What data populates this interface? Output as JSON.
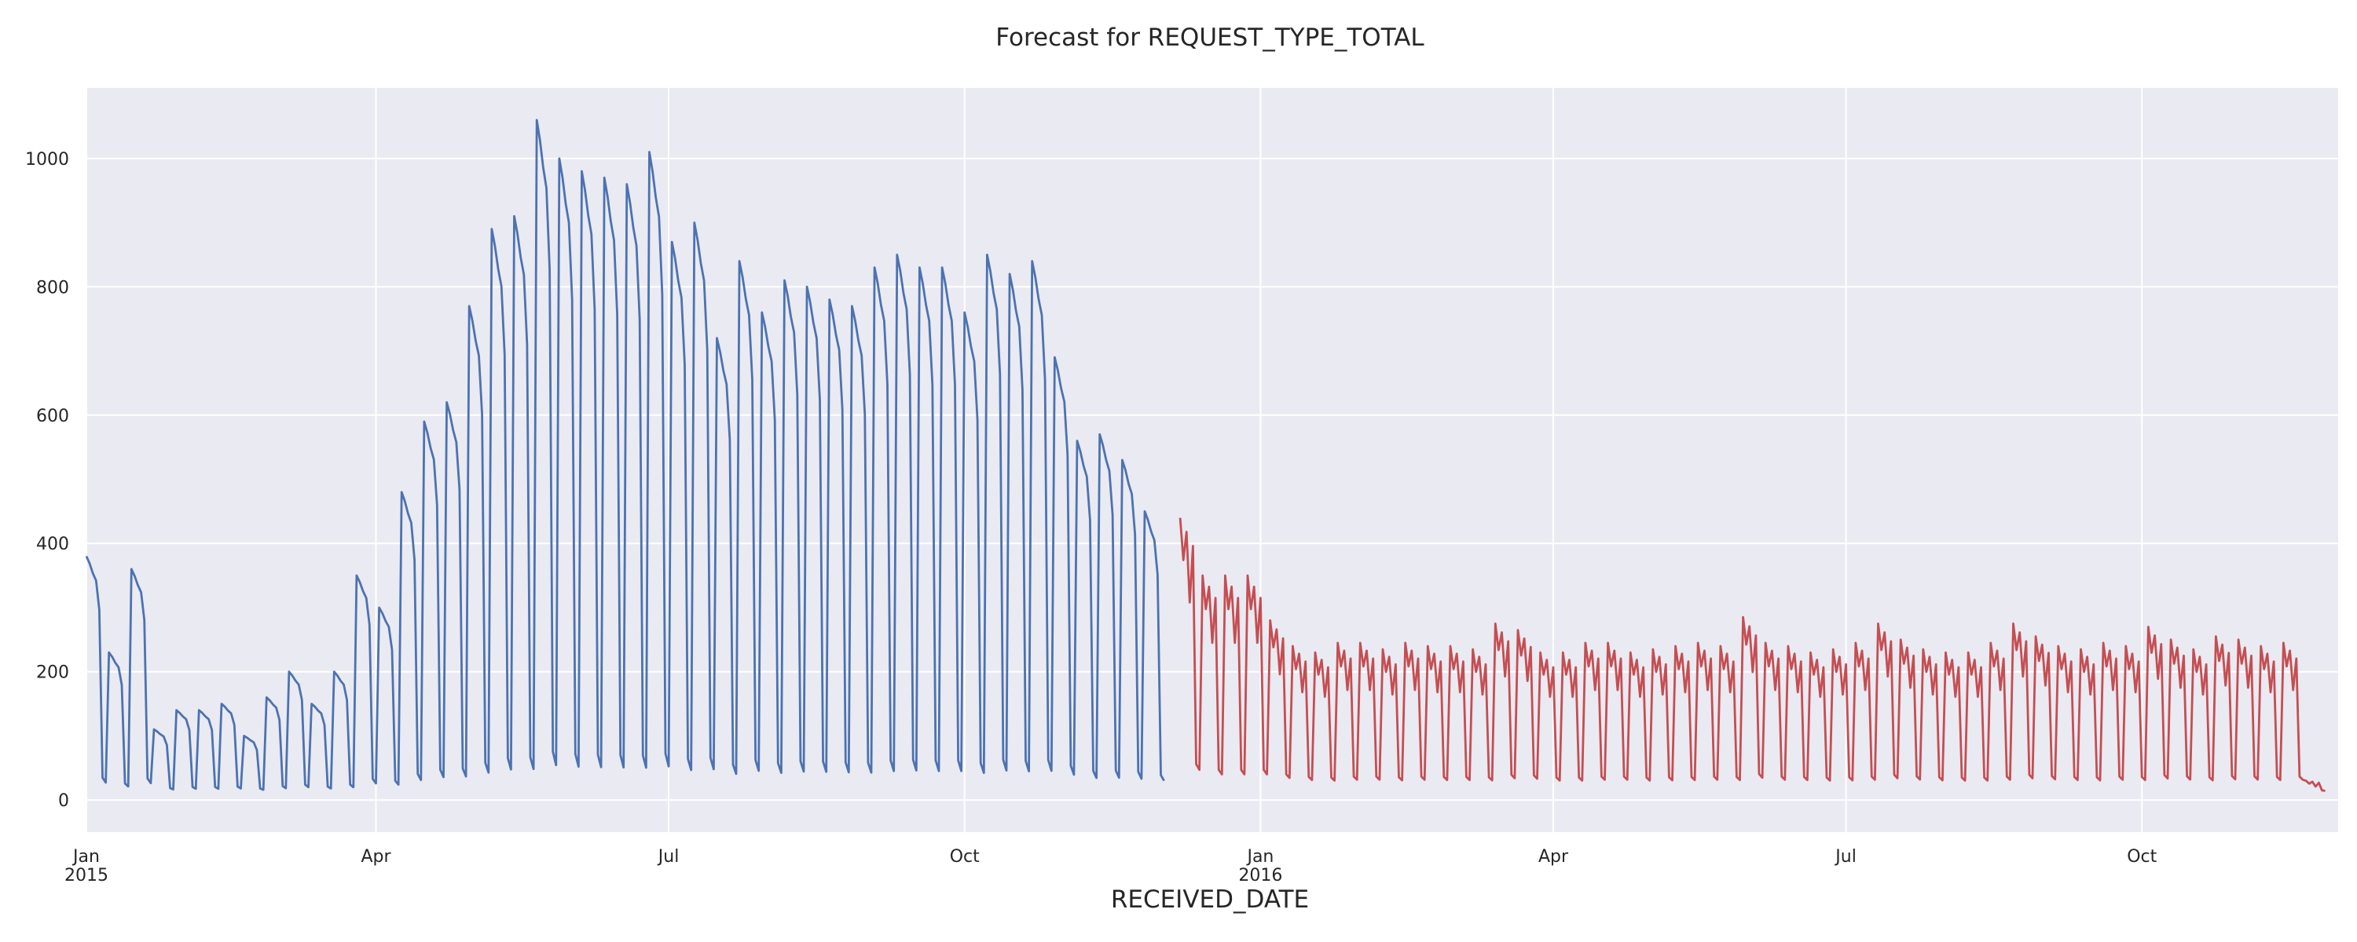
{
  "chart_data": {
    "type": "line",
    "title": "Forecast for REQUEST_TYPE_TOTAL",
    "xlabel": "RECEIVED_DATE",
    "ylabel": "",
    "x_range": [
      "2015-01-01",
      "2016-12-01"
    ],
    "ylim": [
      -50,
      1110
    ],
    "y_ticks": [
      0,
      200,
      400,
      600,
      800,
      1000
    ],
    "x_ticks": [
      {
        "date": "2015-01-01",
        "label": "Jan",
        "sublabel": "2015"
      },
      {
        "date": "2015-04-01",
        "label": "Apr",
        "sublabel": ""
      },
      {
        "date": "2015-07-01",
        "label": "Jul",
        "sublabel": ""
      },
      {
        "date": "2015-10-01",
        "label": "Oct",
        "sublabel": ""
      },
      {
        "date": "2016-01-01",
        "label": "Jan",
        "sublabel": "2016"
      },
      {
        "date": "2016-04-01",
        "label": "Apr",
        "sublabel": ""
      },
      {
        "date": "2016-07-01",
        "label": "Jul",
        "sublabel": ""
      },
      {
        "date": "2016-10-01",
        "label": "Oct",
        "sublabel": ""
      }
    ],
    "grid": true,
    "legend": "none",
    "series": [
      {
        "color": "#4c72b0",
        "x_start": "2015-01-01",
        "x_step_days": 7,
        "weekday_profile": [
          1,
          0.97,
          0.93,
          0.9,
          0.78,
          0.06,
          0.04
        ],
        "weekly_peaks": [
          380,
          230,
          360,
          110,
          140,
          140,
          150,
          100,
          160,
          200,
          150,
          200,
          350,
          300,
          480,
          590,
          620,
          770,
          890,
          910,
          1060,
          1000,
          980,
          970,
          960,
          1010,
          870,
          900,
          720,
          840,
          760,
          810,
          800,
          780,
          770,
          830,
          850,
          830,
          830,
          760,
          850,
          820,
          840,
          690,
          560,
          570,
          530,
          450
        ]
      },
      {
        "color": "#c44e52",
        "x_start": "2015-12-07",
        "x_step_days": 7,
        "weekday_profile": [
          1,
          0.85,
          0.95,
          0.7,
          0.9,
          0.1,
          0.08
        ],
        "weekly_peaks": [
          440,
          350,
          350,
          350,
          280,
          240,
          230,
          245,
          245,
          235,
          245,
          240,
          240,
          235,
          275,
          265,
          230,
          230,
          245,
          245,
          230,
          235,
          240,
          245,
          240,
          285,
          245,
          240,
          230,
          235,
          245,
          275,
          250,
          235,
          230,
          230,
          245,
          275,
          255,
          240,
          235,
          245,
          240,
          270,
          250,
          235,
          255,
          250,
          240,
          245,
          30
        ]
      }
    ]
  }
}
